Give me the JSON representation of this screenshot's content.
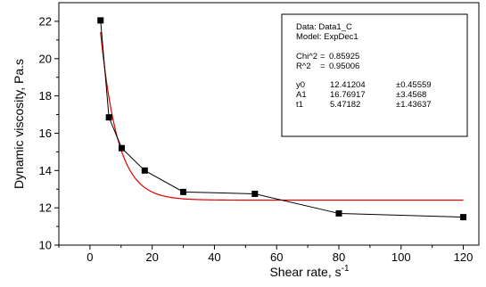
{
  "chart_data": {
    "type": "scatter",
    "xlabel": "Shear rate, s",
    "xlabel_superscript": "-1",
    "ylabel": "Dynamic viscosity, Pa.s",
    "xlim": [
      -10,
      125
    ],
    "ylim": [
      10,
      23
    ],
    "x_ticks": [
      0,
      20,
      40,
      60,
      80,
      100,
      120
    ],
    "y_ticks": [
      10,
      12,
      14,
      16,
      18,
      20,
      22
    ],
    "grid": false,
    "data_color": "#000000",
    "fit_color": "#dd0000",
    "series": [
      {
        "x": [
          3.4,
          6.1,
          10.2,
          17.6,
          30,
          53,
          80,
          120
        ],
        "y": [
          22.05,
          16.85,
          15.2,
          14.0,
          12.85,
          12.75,
          11.7,
          11.5
        ]
      }
    ],
    "fit": {
      "model": "ExpDec1",
      "y0": 12.41204,
      "A1": 16.76917,
      "t1": 5.47182,
      "x_range": [
        3.4,
        120
      ]
    },
    "fit_box": {
      "data_line": "Data: Data1_C",
      "model_line": "Model: ExpDec1",
      "stats": [
        {
          "name": "Chi^2",
          "eq": "=",
          "value": "0.85925"
        },
        {
          "name": "R^2",
          "eq": "=",
          "value": "0.95006"
        }
      ],
      "params": [
        {
          "name": "y0",
          "value": "12.41204",
          "error": "±0.45559"
        },
        {
          "name": "A1",
          "value": "16.76917",
          "error": "±3.4568"
        },
        {
          "name": "t1",
          "value": "5.47182",
          "error": "±1.43637"
        }
      ]
    }
  }
}
